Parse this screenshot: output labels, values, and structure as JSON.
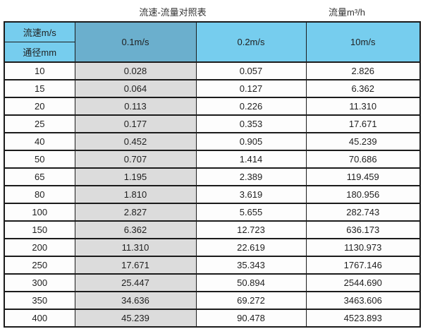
{
  "page_header": {
    "title": "流速-流量对照表",
    "unit_label": "流量m³/h"
  },
  "table_header": {
    "corner_top": "流速m/s",
    "corner_bottom": "通径mm",
    "velocity_columns": [
      "0.1m/s",
      "0.2m/s",
      "10m/s"
    ]
  },
  "colors": {
    "header_blue": "#76CDEE",
    "header_blue_dark": "#6BAFCD",
    "gray_column": "#DCDCDC",
    "border": "#1B1B1B",
    "background": "#FFFFFF"
  },
  "chart_data": {
    "type": "table",
    "title": "流速-流量对照表",
    "unit": "流量m³/h",
    "columns": [
      "通径mm",
      "0.1m/s",
      "0.2m/s",
      "10m/s"
    ],
    "rows": [
      [
        "10",
        "0.028",
        "0.057",
        "2.826"
      ],
      [
        "15",
        "0.064",
        "0.127",
        "6.362"
      ],
      [
        "20",
        "0.113",
        "0.226",
        "11.310"
      ],
      [
        "25",
        "0.177",
        "0.353",
        "17.671"
      ],
      [
        "40",
        "0.452",
        "0.905",
        "45.239"
      ],
      [
        "50",
        "0.707",
        "1.414",
        "70.686"
      ],
      [
        "65",
        "1.195",
        "2.389",
        "119.459"
      ],
      [
        "80",
        "1.810",
        "3.619",
        "180.956"
      ],
      [
        "100",
        "2.827",
        "5.655",
        "282.743"
      ],
      [
        "150",
        "6.362",
        "12.723",
        "636.173"
      ],
      [
        "200",
        "11.310",
        "22.619",
        "1130.973"
      ],
      [
        "250",
        "17.671",
        "35.343",
        "1767.146"
      ],
      [
        "300",
        "25.447",
        "50.894",
        "2544.690"
      ],
      [
        "350",
        "34.636",
        "69.272",
        "3463.606"
      ],
      [
        "400",
        "45.239",
        "90.478",
        "4523.893"
      ]
    ]
  }
}
